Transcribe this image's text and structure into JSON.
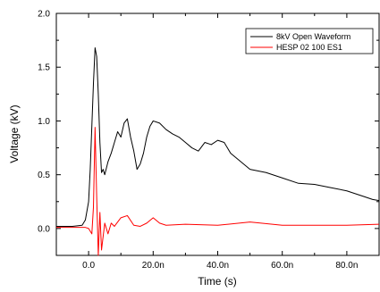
{
  "chart_data": {
    "type": "line",
    "title": "",
    "xlabel": "Time (s)",
    "ylabel": "Voltage (kV)",
    "xlim": [
      -10,
      90
    ],
    "ylim": [
      -0.25,
      2.0
    ],
    "x_unit": "ns",
    "xticks": [
      0,
      20,
      40,
      60,
      80
    ],
    "xtick_labels": [
      "0.0",
      "20.0n",
      "40.0n",
      "60.0n",
      "80.0n"
    ],
    "yticks": [
      0.0,
      0.5,
      1.0,
      1.5,
      2.0
    ],
    "ytick_labels": [
      "0.0",
      "0.5",
      "1.0",
      "1.5",
      "2.0"
    ],
    "grid": false,
    "legend_position": "top-right",
    "series": [
      {
        "name": "8kV Open Waveform",
        "color": "#000000",
        "x": [
          -10,
          -5,
          -2,
          -1,
          0,
          0.5,
          1,
          1.5,
          2,
          2.5,
          3,
          3.5,
          4,
          4.5,
          5,
          6,
          7,
          8,
          9,
          10,
          11,
          12,
          13,
          14,
          15,
          16,
          17,
          18,
          19,
          20,
          22,
          24,
          26,
          28,
          30,
          32,
          34,
          36,
          38,
          40,
          42,
          44,
          46,
          48,
          50,
          55,
          60,
          65,
          70,
          75,
          80,
          85,
          88,
          90
        ],
        "y": [
          0.02,
          0.02,
          0.03,
          0.08,
          0.25,
          0.55,
          0.95,
          1.35,
          1.68,
          1.6,
          1.25,
          0.8,
          0.52,
          0.55,
          0.5,
          0.62,
          0.7,
          0.8,
          0.9,
          0.85,
          0.98,
          1.02,
          0.85,
          0.72,
          0.55,
          0.6,
          0.7,
          0.85,
          0.95,
          1.0,
          0.98,
          0.92,
          0.88,
          0.85,
          0.8,
          0.75,
          0.72,
          0.8,
          0.78,
          0.82,
          0.8,
          0.7,
          0.65,
          0.6,
          0.55,
          0.52,
          0.47,
          0.42,
          0.41,
          0.38,
          0.35,
          0.3,
          0.27,
          0.26
        ]
      },
      {
        "name": "HESP 02 100 ES1",
        "color": "#ff0000",
        "x": [
          -10,
          -5,
          -1,
          0,
          1,
          1.5,
          2,
          2.5,
          3,
          3.5,
          4,
          5,
          6,
          7,
          8,
          10,
          12,
          14,
          16,
          18,
          20,
          22,
          24,
          30,
          40,
          50,
          60,
          70,
          80,
          90
        ],
        "y": [
          0.01,
          0.01,
          0.01,
          0.0,
          -0.05,
          0.2,
          0.94,
          0.3,
          -0.25,
          0.15,
          -0.2,
          0.05,
          -0.05,
          0.05,
          0.02,
          0.1,
          0.12,
          0.03,
          0.02,
          0.05,
          0.1,
          0.05,
          0.03,
          0.04,
          0.03,
          0.06,
          0.03,
          0.03,
          0.03,
          0.04
        ]
      }
    ]
  }
}
